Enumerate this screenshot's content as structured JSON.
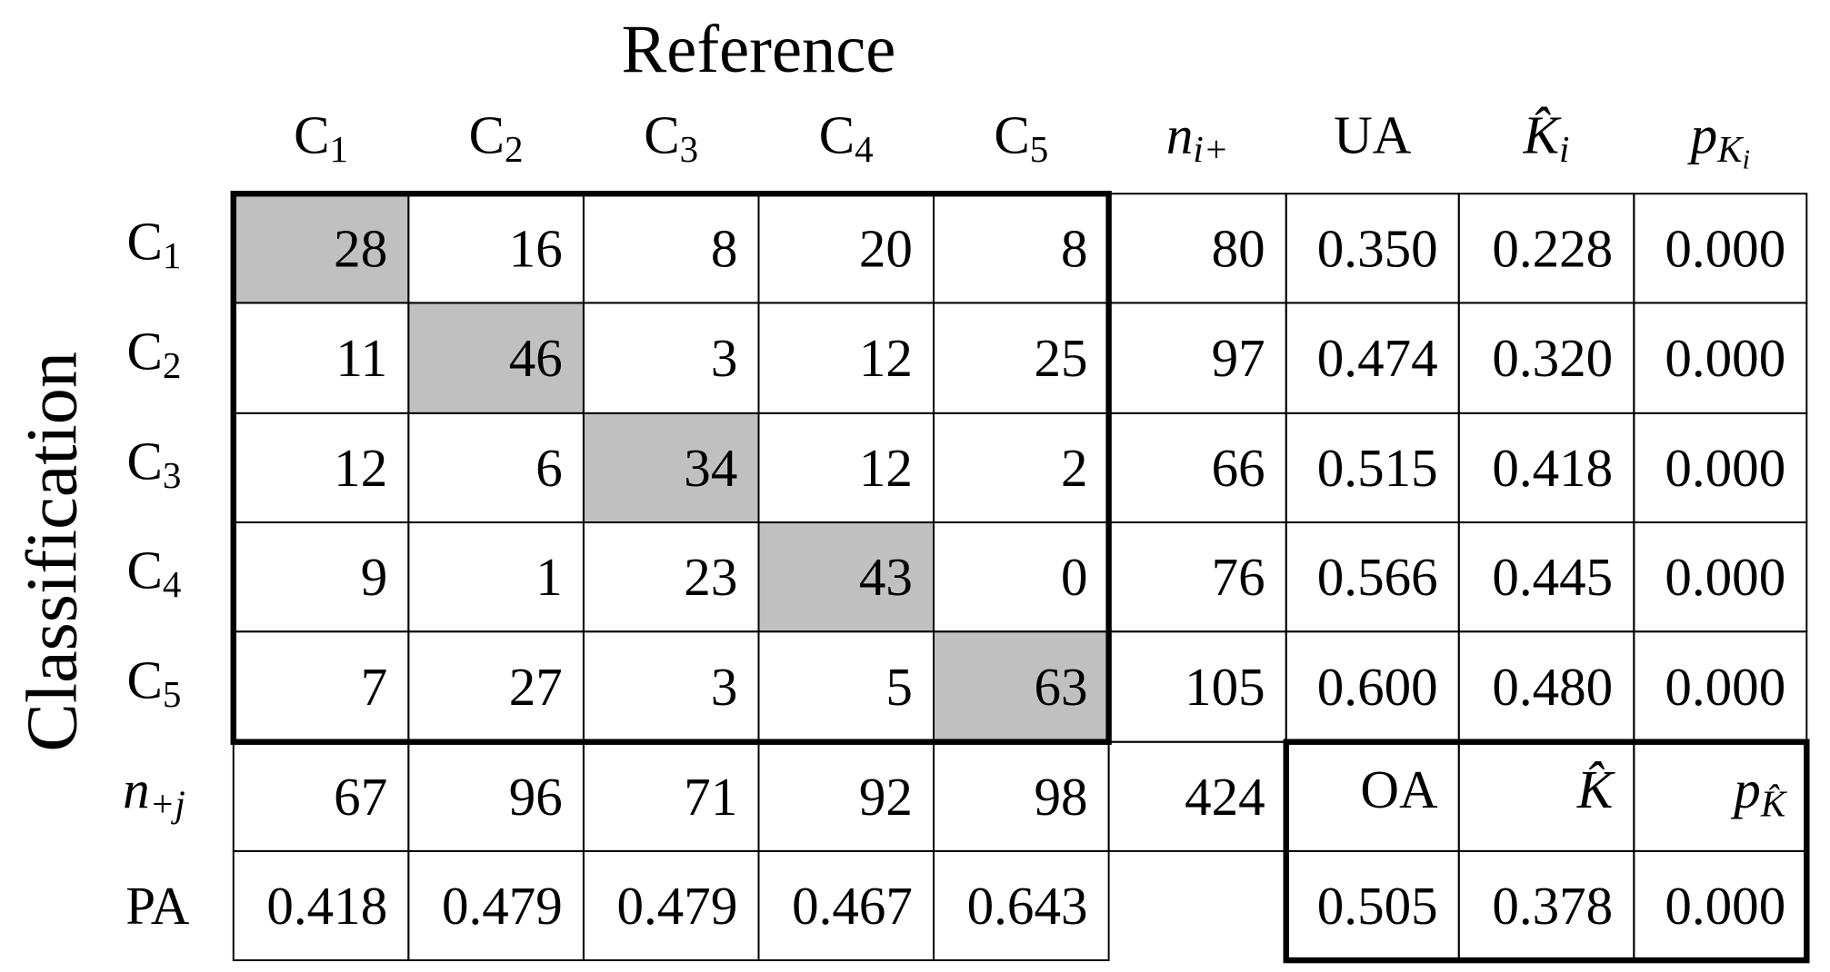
{
  "axis_titles": {
    "columns": "Reference",
    "rows": "Classification"
  },
  "column_headers": [
    {
      "base": "C",
      "sub": "1"
    },
    {
      "base": "C",
      "sub": "2"
    },
    {
      "base": "C",
      "sub": "3"
    },
    {
      "base": "C",
      "sub": "4"
    },
    {
      "base": "C",
      "sub": "5"
    },
    {
      "base": "n",
      "sub": "i+",
      "italic": true
    },
    {
      "base": "UA"
    },
    {
      "base": "K̂",
      "sub": "i",
      "italic": true
    },
    {
      "base": "p",
      "sub": "K",
      "subsub": "i",
      "italic": true
    }
  ],
  "rows": [
    {
      "label": {
        "base": "C",
        "sub": "1"
      },
      "cells": [
        28,
        16,
        8,
        20,
        8
      ],
      "total": 80,
      "ua": "0.350",
      "kappa": "0.228",
      "p": "0.000"
    },
    {
      "label": {
        "base": "C",
        "sub": "2"
      },
      "cells": [
        11,
        46,
        3,
        12,
        25
      ],
      "total": 97,
      "ua": "0.474",
      "kappa": "0.320",
      "p": "0.000"
    },
    {
      "label": {
        "base": "C",
        "sub": "3"
      },
      "cells": [
        12,
        6,
        34,
        12,
        2
      ],
      "total": 66,
      "ua": "0.515",
      "kappa": "0.418",
      "p": "0.000"
    },
    {
      "label": {
        "base": "C",
        "sub": "4"
      },
      "cells": [
        9,
        1,
        23,
        43,
        0
      ],
      "total": 76,
      "ua": "0.566",
      "kappa": "0.445",
      "p": "0.000"
    },
    {
      "label": {
        "base": "C",
        "sub": "5"
      },
      "cells": [
        7,
        27,
        3,
        5,
        63
      ],
      "total": 105,
      "ua": "0.600",
      "kappa": "0.480",
      "p": "0.000"
    }
  ],
  "column_totals": {
    "label": {
      "base": "n",
      "sub": "+j",
      "italic": true
    },
    "values": [
      67,
      96,
      71,
      92,
      98
    ],
    "grand_total": 424
  },
  "pa": {
    "label": {
      "base": "PA"
    },
    "values": [
      "0.418",
      "0.479",
      "0.479",
      "0.467",
      "0.643"
    ]
  },
  "overall": {
    "headers": [
      {
        "base": "OA"
      },
      {
        "base": "K̂",
        "italic": true
      },
      {
        "base": "p",
        "sub": "K̂",
        "italic": true
      }
    ],
    "values": [
      "0.505",
      "0.378",
      "0.000"
    ]
  },
  "diagonal_color": "#c0c0c0"
}
